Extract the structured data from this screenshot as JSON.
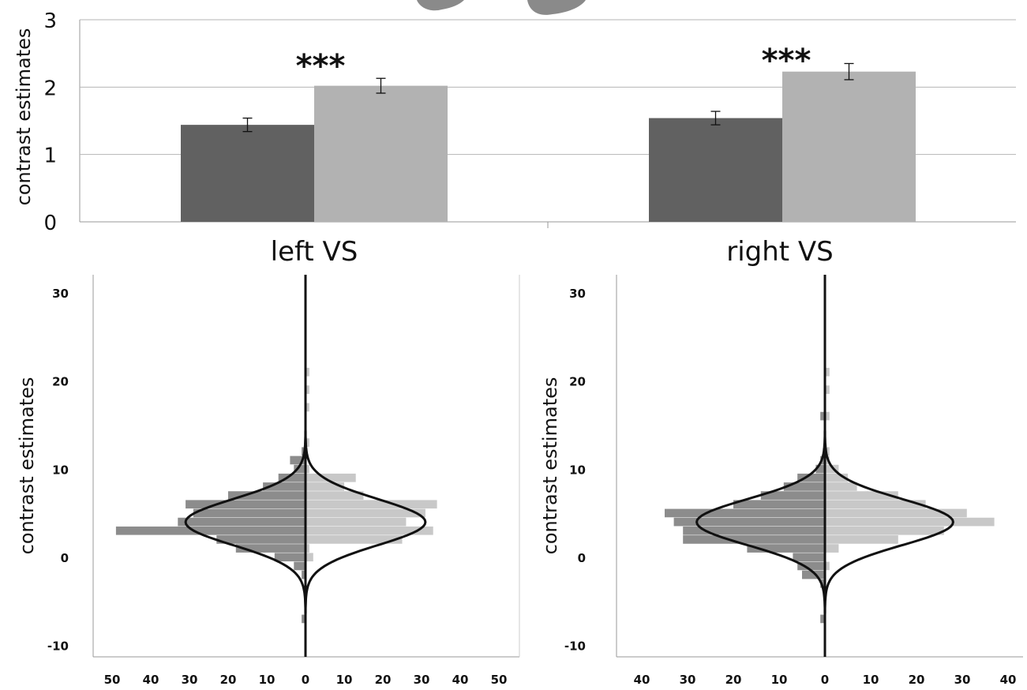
{
  "chart_data": [
    {
      "type": "bar",
      "ylabel": "contrast estimates",
      "ylim": [
        0,
        3
      ],
      "yticks": [
        "0",
        "1",
        "2",
        "3"
      ],
      "grid": true,
      "categories": [
        "left VS",
        "right VS"
      ],
      "series": [
        {
          "values": [
            1.44,
            1.54
          ],
          "errors": [
            0.1,
            0.1
          ],
          "color": "#616161"
        },
        {
          "values": [
            2.02,
            2.23
          ],
          "errors": [
            0.11,
            0.12
          ],
          "color": "#b2b2b2"
        }
      ],
      "annotations": [
        "***",
        "***"
      ]
    },
    {
      "type": "bar",
      "subtype": "mirrored-histogram",
      "ylabel": "contrast estimates",
      "ylim": [
        -10,
        30
      ],
      "yticks": [
        "30",
        "20",
        "10",
        "0",
        "-10"
      ],
      "xticks": [
        "50",
        "40",
        "30",
        "20",
        "10",
        "0",
        "10",
        "20",
        "30",
        "40",
        "50"
      ],
      "xlim": [
        -55,
        55
      ],
      "bin_centers": [
        13,
        12,
        11,
        10,
        9,
        8,
        7,
        6,
        5,
        4,
        3,
        2,
        1,
        0,
        -1,
        -2,
        -3
      ],
      "left_counts": [
        0,
        1,
        4,
        3,
        7,
        11,
        20,
        31,
        29,
        33,
        49,
        23,
        18,
        8,
        3,
        1,
        0
      ],
      "right_counts": [
        1,
        0,
        0,
        1,
        13,
        10,
        15,
        34,
        31,
        26,
        33,
        25,
        1,
        2,
        0,
        0,
        0
      ],
      "left_color": "#8c8c8c",
      "right_color": "#c8c8c8",
      "extra_right_bins": [
        {
          "y": 21,
          "count": 1
        },
        {
          "y": 19,
          "count": 1
        },
        {
          "y": 17,
          "count": 1
        }
      ],
      "extra_left_bins": [
        {
          "y": -7,
          "count": 1
        }
      ],
      "curve": {
        "mean": 4,
        "sd": 2.6,
        "peak_count": 31
      }
    },
    {
      "type": "bar",
      "subtype": "mirrored-histogram",
      "ylabel": "contrast estimates",
      "ylim": [
        -10,
        30
      ],
      "yticks": [
        "30",
        "20",
        "10",
        "0",
        "-10"
      ],
      "xticks": [
        "40",
        "30",
        "20",
        "10",
        "0",
        "10",
        "20",
        "30",
        "40"
      ],
      "xlim": [
        -45,
        45
      ],
      "bin_centers": [
        13,
        12,
        11,
        10,
        9,
        8,
        7,
        6,
        5,
        4,
        3,
        2,
        1,
        0,
        -1,
        -2,
        -3
      ],
      "left_counts": [
        0,
        0,
        1,
        2,
        6,
        9,
        14,
        20,
        35,
        33,
        31,
        31,
        17,
        7,
        6,
        5,
        1
      ],
      "right_counts": [
        0,
        1,
        1,
        3,
        5,
        7,
        16,
        22,
        31,
        37,
        26,
        16,
        3,
        0,
        1,
        0,
        0
      ],
      "left_color": "#8c8c8c",
      "right_color": "#c8c8c8",
      "extra_right_bins": [
        {
          "y": 21,
          "count": 1
        },
        {
          "y": 19,
          "count": 1
        },
        {
          "y": 16,
          "count": 1
        }
      ],
      "extra_left_bins": [
        {
          "y": 16,
          "count": 1
        },
        {
          "y": -7,
          "count": 1
        }
      ],
      "curve": {
        "mean": 4,
        "sd": 2.6,
        "peak_count": 28
      }
    }
  ]
}
